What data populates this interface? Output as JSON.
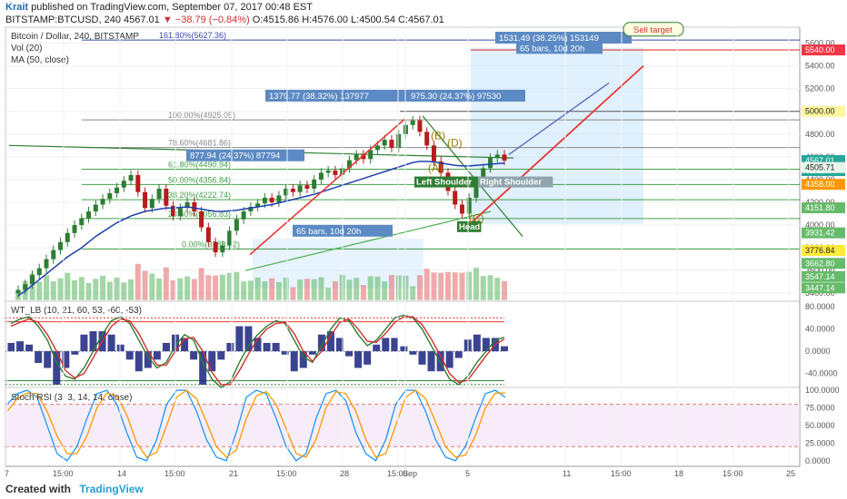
{
  "header": {
    "author": "Krait",
    "published_text": "published on TradingView.com, September 07, 2017 00:48 EST",
    "symbol_line": "BITSTAMP:BTCUSD, 240",
    "last": "4567.01",
    "change": "▼ −38.79 (−0.84%)",
    "ohlc": "O:4515.86 H:4576.00 L:4500.54 C:4567.01"
  },
  "footer": {
    "created_with": "Created with",
    "brand": "TradingView"
  },
  "chart_data": [
    {
      "type": "line",
      "title": "Bitcoin / Dollar, 240, BITSTAMP",
      "sub_labels": [
        "Vol (20)",
        "MA (50, close)"
      ],
      "y_ticks": [
        3400,
        3600,
        3800,
        4000,
        4200,
        4400,
        4600,
        4800,
        5000,
        5200,
        5400,
        5600
      ],
      "ylim": [
        3330,
        5740
      ],
      "x_ticks": [
        "7",
        "15:00",
        "14",
        "15:00",
        "21",
        "15:00",
        "28",
        "15:00",
        "Sep",
        "5",
        "11",
        "15:00",
        "18",
        "15:00",
        "25"
      ],
      "price_labels": [
        {
          "value": "5540.00",
          "bg": "#f23645",
          "fg": "#ffffff"
        },
        {
          "value": "5000.00",
          "bg": "#fff59d",
          "fg": "#222222"
        },
        {
          "value": "4567.01",
          "bg": "#26a69a",
          "fg": "#ffffff"
        },
        {
          "value": "02:11:34",
          "bg": "#26a69a",
          "fg": "#ffffff"
        },
        {
          "value": "4505.71",
          "bg": "#e8f5e9",
          "fg": "#222222"
        },
        {
          "value": "4358.00",
          "bg": "#ff9800",
          "fg": "#ffffff"
        },
        {
          "value": "4151.80",
          "bg": "#66bb6a",
          "fg": "#ffffff"
        },
        {
          "value": "3931.42",
          "bg": "#66bb6a",
          "fg": "#ffffff"
        },
        {
          "value": "3776.84",
          "bg": "#ffeb3b",
          "fg": "#222222"
        },
        {
          "value": "3662.80",
          "bg": "#66bb6a",
          "fg": "#ffffff"
        },
        {
          "value": "3547.14",
          "bg": "#66bb6a",
          "fg": "#ffffff"
        },
        {
          "value": "3447.14",
          "bg": "#66bb6a",
          "fg": "#ffffff"
        }
      ],
      "fib_levels": [
        {
          "label": "161.80%(5627.36)",
          "value": 5627.36
        },
        {
          "label": "100.00%(4925.05)",
          "value": 4925.05
        },
        {
          "label": "78.60%(4681.86)",
          "value": 4681.86
        },
        {
          "label": "61.80%(4490.94)",
          "value": 4490.94
        },
        {
          "label": "50.00%(4356.84)",
          "value": 4356.84
        },
        {
          "label": "38.20%(4222.74)",
          "value": 4222.74
        },
        {
          "label": "23.60%(4056.83)",
          "value": 4056.83
        },
        {
          "label": "0.00%(3788.62)",
          "value": 3788.62
        }
      ],
      "measurements": [
        {
          "text": "1531.49 (38.25%) 153149",
          "sub": "65 bars, 10d 20h"
        },
        {
          "text": "1379.77 (38.32%) 137977"
        },
        {
          "text": "975.30 (24.37%) 97530"
        },
        {
          "text": "877.94 (24.37%) 87794"
        },
        {
          "text": "65 bars, 10d 20h"
        }
      ],
      "annotations": [
        "Sell target",
        "Left Shoulder",
        "Right Shoulder",
        "Head",
        "(A)",
        "(B)",
        "(C)",
        "(D)"
      ],
      "close": [
        3430,
        3480,
        3560,
        3620,
        3700,
        3780,
        3850,
        3930,
        4000,
        4060,
        4120,
        4180,
        4230,
        4280,
        4330,
        4390,
        4440,
        4290,
        4150,
        4230,
        4320,
        4170,
        4080,
        4150,
        4200,
        4120,
        3980,
        3850,
        3760,
        3820,
        3950,
        4050,
        4120,
        4160,
        4190,
        4240,
        4200,
        4260,
        4320,
        4290,
        4350,
        4320,
        4400,
        4460,
        4480,
        4440,
        4500,
        4570,
        4620,
        4580,
        4660,
        4700,
        4750,
        4680,
        4800,
        4880,
        4920,
        4820,
        4700,
        4560,
        4460,
        4300,
        4180,
        4100,
        4240,
        4380,
        4500,
        4590,
        4620,
        4567.01
      ],
      "ma50": [
        3380,
        3420,
        3470,
        3520,
        3570,
        3620,
        3670,
        3720,
        3760,
        3800,
        3850,
        3900,
        3940,
        3980,
        4020,
        4050,
        4080,
        4100,
        4120,
        4130,
        4140,
        4150,
        4150,
        4155,
        4160,
        4150,
        4140,
        4130,
        4120,
        4120,
        4125,
        4130,
        4140,
        4150,
        4160,
        4170,
        4180,
        4195,
        4210,
        4225,
        4240,
        4255,
        4270,
        4290,
        4310,
        4330,
        4350,
        4370,
        4390,
        4410,
        4430,
        4450,
        4470,
        4490,
        4510,
        4530,
        4550,
        4560,
        4560,
        4555,
        4545,
        4535,
        4525,
        4520,
        4520,
        4525,
        4530,
        4535,
        4540,
        4545
      ]
    },
    {
      "type": "line",
      "title": "WT_LB (10, 21, 60, 53, -60, -53)",
      "y_ticks": [
        "80.0000",
        "40.0000",
        "0.0000",
        "-40.0000"
      ],
      "ylim": [
        -65,
        90
      ],
      "wt1": [
        50,
        58,
        62,
        45,
        20,
        -20,
        -45,
        -50,
        -30,
        0,
        30,
        55,
        62,
        50,
        20,
        -10,
        -30,
        -20,
        10,
        30,
        20,
        -20,
        -50,
        -65,
        -55,
        -20,
        10,
        30,
        45,
        55,
        50,
        20,
        -10,
        -20,
        10,
        40,
        60,
        55,
        30,
        10,
        20,
        40,
        60,
        65,
        60,
        40,
        10,
        -20,
        -50,
        -60,
        -45,
        -20,
        0,
        20,
        25
      ],
      "wt2": [
        45,
        52,
        58,
        52,
        30,
        0,
        -35,
        -48,
        -40,
        -12,
        18,
        45,
        58,
        55,
        32,
        0,
        -25,
        -25,
        0,
        22,
        25,
        0,
        -38,
        -60,
        -60,
        -35,
        -5,
        22,
        40,
        50,
        52,
        32,
        0,
        -18,
        0,
        28,
        52,
        58,
        40,
        18,
        16,
        32,
        52,
        62,
        62,
        48,
        22,
        -8,
        -40,
        -56,
        -52,
        -30,
        -8,
        12,
        22
      ]
    },
    {
      "type": "line",
      "title": "Stoch RSI (3, 3, 14, 14, close)",
      "y_ticks": [
        "100.0000",
        "75.0000",
        "50.0000",
        "25.0000",
        "0.0000"
      ],
      "ylim": [
        -8,
        104
      ],
      "k": [
        80,
        95,
        100,
        90,
        50,
        10,
        0,
        20,
        60,
        95,
        100,
        80,
        40,
        5,
        0,
        30,
        80,
        100,
        100,
        70,
        30,
        5,
        0,
        40,
        90,
        100,
        95,
        60,
        20,
        0,
        10,
        60,
        95,
        100,
        85,
        40,
        10,
        0,
        30,
        80,
        100,
        100,
        70,
        30,
        5,
        0,
        20,
        60,
        95,
        100,
        90
      ],
      "d": [
        70,
        88,
        96,
        95,
        70,
        35,
        10,
        10,
        35,
        75,
        96,
        92,
        65,
        25,
        5,
        12,
        50,
        90,
        100,
        88,
        55,
        20,
        5,
        15,
        60,
        92,
        98,
        80,
        45,
        10,
        5,
        30,
        75,
        98,
        95,
        70,
        30,
        5,
        10,
        50,
        90,
        100,
        88,
        55,
        20,
        5,
        8,
        35,
        75,
        96,
        96
      ]
    }
  ]
}
